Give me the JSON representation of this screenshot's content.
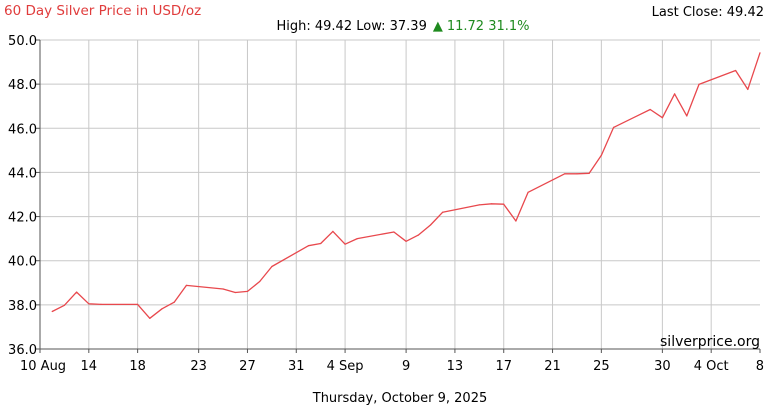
{
  "header": {
    "title": "60 Day Silver Price in USD/oz",
    "last_close": "Last Close: 49.42",
    "high_low": "High: 49.42 Low: 37.39",
    "change_arrow": "▲",
    "change": "11.72 31.1%"
  },
  "footer": {
    "date": "Thursday, October 9, 2025",
    "watermark": "silverprice.org"
  },
  "colors": {
    "title": "#e03c3c",
    "line": "#e8484d",
    "change": "#1e8a1e",
    "grid": "#c8c8c8",
    "axis": "#555555"
  },
  "chart_data": {
    "type": "line",
    "title": "60 Day Silver Price in USD/oz",
    "xlabel": "",
    "ylabel": "",
    "x_range": [
      "2025-08-10",
      "2025-10-08"
    ],
    "ylim": [
      36,
      50
    ],
    "grid": true,
    "y_ticks": [
      36,
      38,
      40,
      42,
      44,
      46,
      48,
      50
    ],
    "y_tick_labels": [
      "36.0",
      "38.0",
      "40.0",
      "42.0",
      "44.0",
      "46.0",
      "48.0",
      "50.0"
    ],
    "x_ticks": [
      {
        "date": "2025-08-10",
        "label": "10 Aug"
      },
      {
        "date": "2025-08-14",
        "label": "14"
      },
      {
        "date": "2025-08-18",
        "label": "18"
      },
      {
        "date": "2025-08-23",
        "label": "23"
      },
      {
        "date": "2025-08-27",
        "label": "27"
      },
      {
        "date": "2025-08-31",
        "label": "31"
      },
      {
        "date": "2025-09-04",
        "label": "4 Sep"
      },
      {
        "date": "2025-09-09",
        "label": "9"
      },
      {
        "date": "2025-09-13",
        "label": "13"
      },
      {
        "date": "2025-09-17",
        "label": "17"
      },
      {
        "date": "2025-09-21",
        "label": "21"
      },
      {
        "date": "2025-09-25",
        "label": "25"
      },
      {
        "date": "2025-09-30",
        "label": "30"
      },
      {
        "date": "2025-10-04",
        "label": "4 Oct"
      },
      {
        "date": "2025-10-08",
        "label": "8"
      }
    ],
    "series": [
      {
        "points": [
          [
            "2025-08-11",
            37.7
          ],
          [
            "2025-08-12",
            37.98
          ],
          [
            "2025-08-13",
            38.58
          ],
          [
            "2025-08-14",
            38.05
          ],
          [
            "2025-08-15",
            38.02
          ],
          [
            "2025-08-18",
            38.02
          ],
          [
            "2025-08-19",
            37.39
          ],
          [
            "2025-08-20",
            37.82
          ],
          [
            "2025-08-21",
            38.12
          ],
          [
            "2025-08-22",
            38.88
          ],
          [
            "2025-08-25",
            38.72
          ],
          [
            "2025-08-26",
            38.56
          ],
          [
            "2025-08-27",
            38.61
          ],
          [
            "2025-08-28",
            39.06
          ],
          [
            "2025-08-29",
            39.74
          ],
          [
            "2025-09-01",
            40.68
          ],
          [
            "2025-09-02",
            40.78
          ],
          [
            "2025-09-03",
            41.33
          ],
          [
            "2025-09-04",
            40.75
          ],
          [
            "2025-09-05",
            41.0
          ],
          [
            "2025-09-08",
            41.3
          ],
          [
            "2025-09-09",
            40.88
          ],
          [
            "2025-09-10",
            41.16
          ],
          [
            "2025-09-11",
            41.62
          ],
          [
            "2025-09-12",
            42.2
          ],
          [
            "2025-09-15",
            42.53
          ],
          [
            "2025-09-16",
            42.58
          ],
          [
            "2025-09-17",
            42.56
          ],
          [
            "2025-09-18",
            41.8
          ],
          [
            "2025-09-19",
            43.1
          ],
          [
            "2025-09-22",
            43.94
          ],
          [
            "2025-09-23",
            43.94
          ],
          [
            "2025-09-24",
            43.96
          ],
          [
            "2025-09-25",
            44.78
          ],
          [
            "2025-09-26",
            46.04
          ],
          [
            "2025-09-29",
            46.85
          ],
          [
            "2025-09-30",
            46.48
          ],
          [
            "2025-10-01",
            47.56
          ],
          [
            "2025-10-02",
            46.56
          ],
          [
            "2025-10-03",
            47.99
          ],
          [
            "2025-10-06",
            48.62
          ],
          [
            "2025-10-07",
            47.76
          ],
          [
            "2025-10-08",
            49.42
          ]
        ]
      }
    ]
  }
}
